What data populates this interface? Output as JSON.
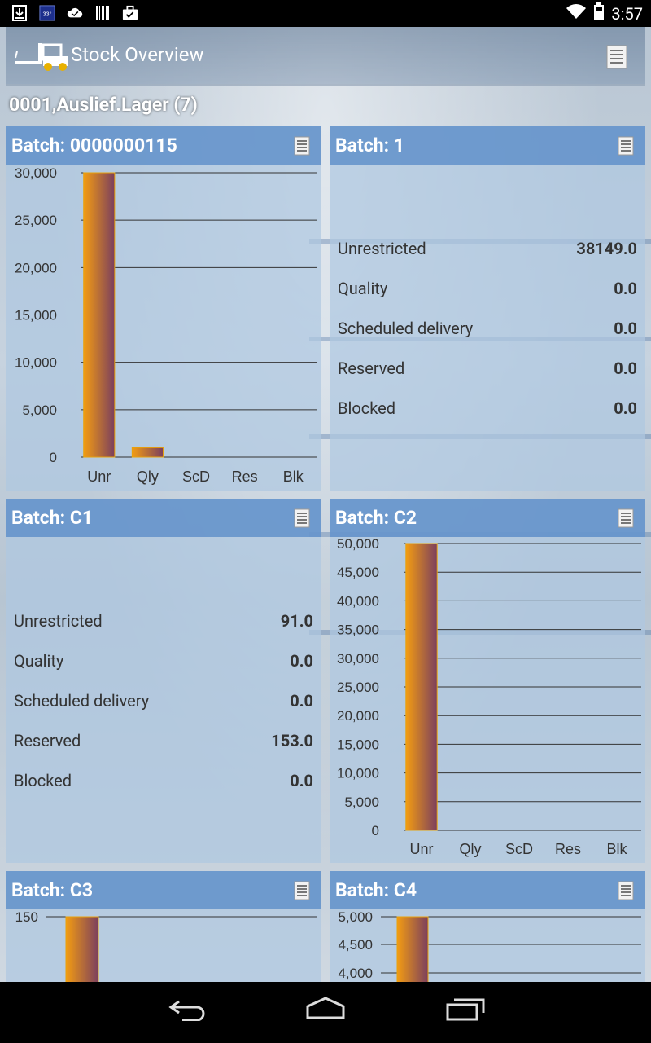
{
  "status_bar": {
    "time": "3:57",
    "left_icons": [
      "download-icon",
      "temperature-icon",
      "cloud-check-icon",
      "barcode-icon",
      "briefcase-icon"
    ],
    "temp_label": "33°"
  },
  "app": {
    "title": "Stock Overview",
    "section_title": "0001,Auslief.Lager (7)"
  },
  "cards": [
    {
      "title": "Batch: 0000000115",
      "mode": "chart",
      "chart_data": {
        "type": "bar",
        "categories": [
          "Unr",
          "Qly",
          "ScD",
          "Res",
          "Blk"
        ],
        "values": [
          30000,
          1000,
          0,
          0,
          0
        ],
        "ylim": [
          0,
          30000
        ],
        "yticks": [
          "0",
          "5,000",
          "10,000",
          "15,000",
          "20,000",
          "25,000",
          "30,000"
        ]
      }
    },
    {
      "title": "Batch: 1",
      "mode": "table",
      "rows": [
        {
          "label": "Unrestricted",
          "value": "38149.0"
        },
        {
          "label": "Quality",
          "value": "0.0"
        },
        {
          "label": "Scheduled delivery",
          "value": "0.0"
        },
        {
          "label": "Reserved",
          "value": "0.0"
        },
        {
          "label": "Blocked",
          "value": "0.0"
        }
      ]
    },
    {
      "title": "Batch: C1",
      "mode": "table",
      "rows": [
        {
          "label": "Unrestricted",
          "value": "91.0"
        },
        {
          "label": "Quality",
          "value": "0.0"
        },
        {
          "label": "Scheduled delivery",
          "value": "0.0"
        },
        {
          "label": "Reserved",
          "value": "153.0"
        },
        {
          "label": "Blocked",
          "value": "0.0"
        }
      ]
    },
    {
      "title": "Batch: C2",
      "mode": "chart",
      "chart_data": {
        "type": "bar",
        "categories": [
          "Unr",
          "Qly",
          "ScD",
          "Res",
          "Blk"
        ],
        "values": [
          50000,
          0,
          0,
          0,
          0
        ],
        "ylim": [
          0,
          50000
        ],
        "yticks": [
          "0",
          "5,000",
          "10,000",
          "15,000",
          "20,000",
          "25,000",
          "30,000",
          "35,000",
          "40,000",
          "45,000",
          "50,000"
        ]
      }
    },
    {
      "title": "Batch: C3",
      "mode": "chart_partial",
      "chart_data": {
        "type": "bar",
        "yticks_visible": [
          "150"
        ]
      }
    },
    {
      "title": "Batch: C4",
      "mode": "chart_partial",
      "chart_data": {
        "type": "bar",
        "yticks_visible": [
          "5,000",
          "4,500",
          "4,000"
        ]
      }
    }
  ],
  "colors": {
    "bar_gradient_start": "#f39c12",
    "bar_gradient_end": "#7b3f5e",
    "header": "#5a8cc8"
  },
  "nav": {
    "buttons": [
      "back-icon",
      "home-icon",
      "recent-apps-icon"
    ]
  }
}
